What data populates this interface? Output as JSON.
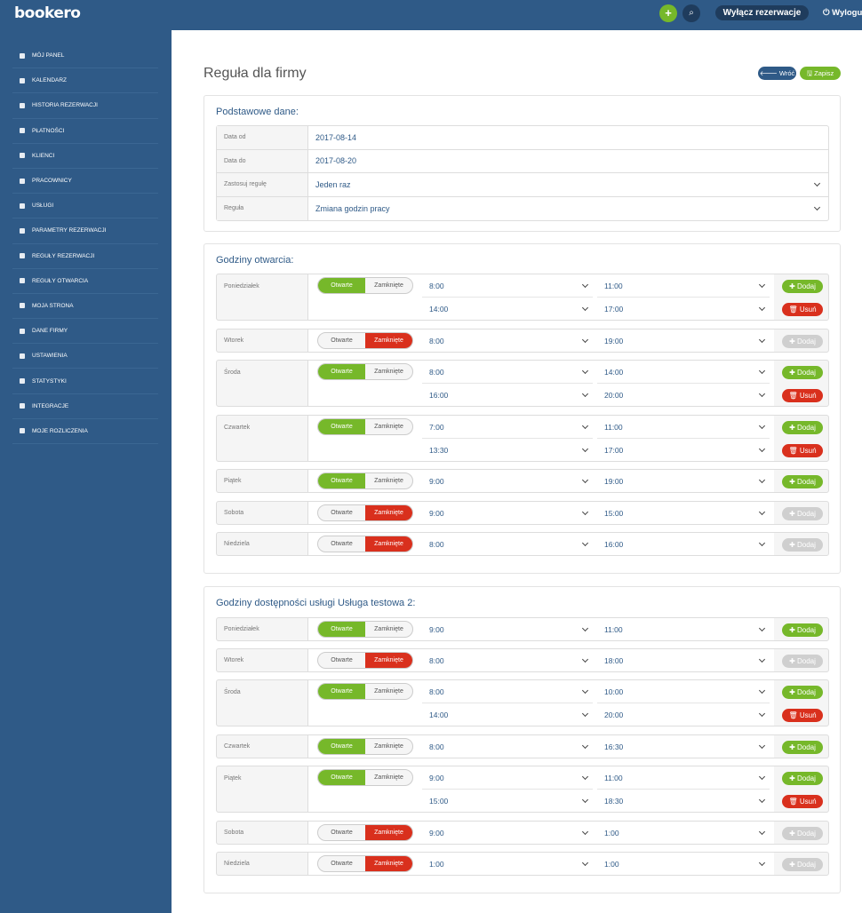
{
  "topbar": {
    "logo": "bookero",
    "plus": "+",
    "search_icon": "⌕",
    "disable_bookings": "Wyłącz rezerwacje",
    "logout": "⏻ Wyloguj"
  },
  "sidebar": {
    "items": [
      {
        "label": "MÓJ PANEL",
        "icon": "home-icon"
      },
      {
        "label": "KALENDARZ",
        "icon": "calendar-icon"
      },
      {
        "label": "HISTORIA REZERWACJI",
        "icon": "history-icon"
      },
      {
        "label": "PŁATNOŚCI",
        "icon": "credit-card-icon"
      },
      {
        "label": "KLIENCI",
        "icon": "users-icon"
      },
      {
        "label": "PRACOWNICY",
        "icon": "user-group-icon"
      },
      {
        "label": "USŁUGI",
        "icon": "cubes-icon"
      },
      {
        "label": "PARAMETRY REZERWACJI",
        "icon": "wrench-icon"
      },
      {
        "label": "REGUŁY REZERWACJI",
        "icon": "info-icon"
      },
      {
        "label": "REGUŁY OTWARCIA",
        "icon": "calendar-rule-icon"
      },
      {
        "label": "MOJA STRONA",
        "icon": "file-icon"
      },
      {
        "label": "DANE FIRMY",
        "icon": "briefcase-icon"
      },
      {
        "label": "USTAWIENIA",
        "icon": "gear-icon"
      },
      {
        "label": "STATYSTYKI",
        "icon": "chart-icon"
      },
      {
        "label": "INTEGRACJE",
        "icon": "external-link-icon"
      },
      {
        "label": "MOJE ROZLICZENIA",
        "icon": "bank-icon"
      }
    ]
  },
  "page": {
    "title": "Reguła dla firmy",
    "back": "🡐 Wróć",
    "save": "🖫 Zapisz"
  },
  "basic": {
    "heading": "Podstawowe dane:",
    "rows": [
      {
        "label": "Data od",
        "value": "2017-08-14"
      },
      {
        "label": "Data do",
        "value": "2017-08-20"
      },
      {
        "label": "Zastosuj regułę",
        "value": "Jeden raz"
      },
      {
        "label": "Reguła",
        "value": "Zmiana godzin pracy"
      }
    ]
  },
  "labels": {
    "open": "Otwarte",
    "closed": "Zamknięte",
    "add": "✚ Dodaj",
    "remove": "🗑 Usuń"
  },
  "opening": {
    "heading": "Godziny otwarcia:",
    "days": [
      {
        "name": "Poniedziałek",
        "status": "open",
        "slots": [
          [
            "8:00",
            "11:00"
          ],
          [
            "14:00",
            "17:00"
          ]
        ]
      },
      {
        "name": "Wtorek",
        "status": "closed",
        "slots": [
          [
            "8:00",
            "19:00"
          ]
        ]
      },
      {
        "name": "Środa",
        "status": "open",
        "slots": [
          [
            "8:00",
            "14:00"
          ],
          [
            "16:00",
            "20:00"
          ]
        ]
      },
      {
        "name": "Czwartek",
        "status": "open",
        "slots": [
          [
            "7:00",
            "11:00"
          ],
          [
            "13:30",
            "17:00"
          ]
        ]
      },
      {
        "name": "Piątek",
        "status": "open",
        "slots": [
          [
            "9:00",
            "19:00"
          ]
        ]
      },
      {
        "name": "Sobota",
        "status": "closed",
        "slots": [
          [
            "9:00",
            "15:00"
          ]
        ]
      },
      {
        "name": "Niedziela",
        "status": "closed",
        "slots": [
          [
            "8:00",
            "16:00"
          ]
        ]
      }
    ]
  },
  "service": {
    "heading": "Godziny dostępności usługi Usługa testowa 2:",
    "days": [
      {
        "name": "Poniedziałek",
        "status": "open",
        "slots": [
          [
            "9:00",
            "11:00"
          ]
        ]
      },
      {
        "name": "Wtorek",
        "status": "closed",
        "slots": [
          [
            "8:00",
            "18:00"
          ]
        ]
      },
      {
        "name": "Środa",
        "status": "open",
        "slots": [
          [
            "8:00",
            "10:00"
          ],
          [
            "14:00",
            "20:00"
          ]
        ]
      },
      {
        "name": "Czwartek",
        "status": "open",
        "slots": [
          [
            "8:00",
            "16:30"
          ]
        ]
      },
      {
        "name": "Piątek",
        "status": "open",
        "slots": [
          [
            "9:00",
            "11:00"
          ],
          [
            "15:00",
            "18:30"
          ]
        ]
      },
      {
        "name": "Sobota",
        "status": "closed",
        "slots": [
          [
            "9:00",
            "1:00"
          ]
        ]
      },
      {
        "name": "Niedziela",
        "status": "closed",
        "slots": [
          [
            "1:00",
            "1:00"
          ]
        ]
      }
    ]
  },
  "colors": {
    "brand": "#2f5a87",
    "green": "#76b82a",
    "red": "#d9301d"
  }
}
